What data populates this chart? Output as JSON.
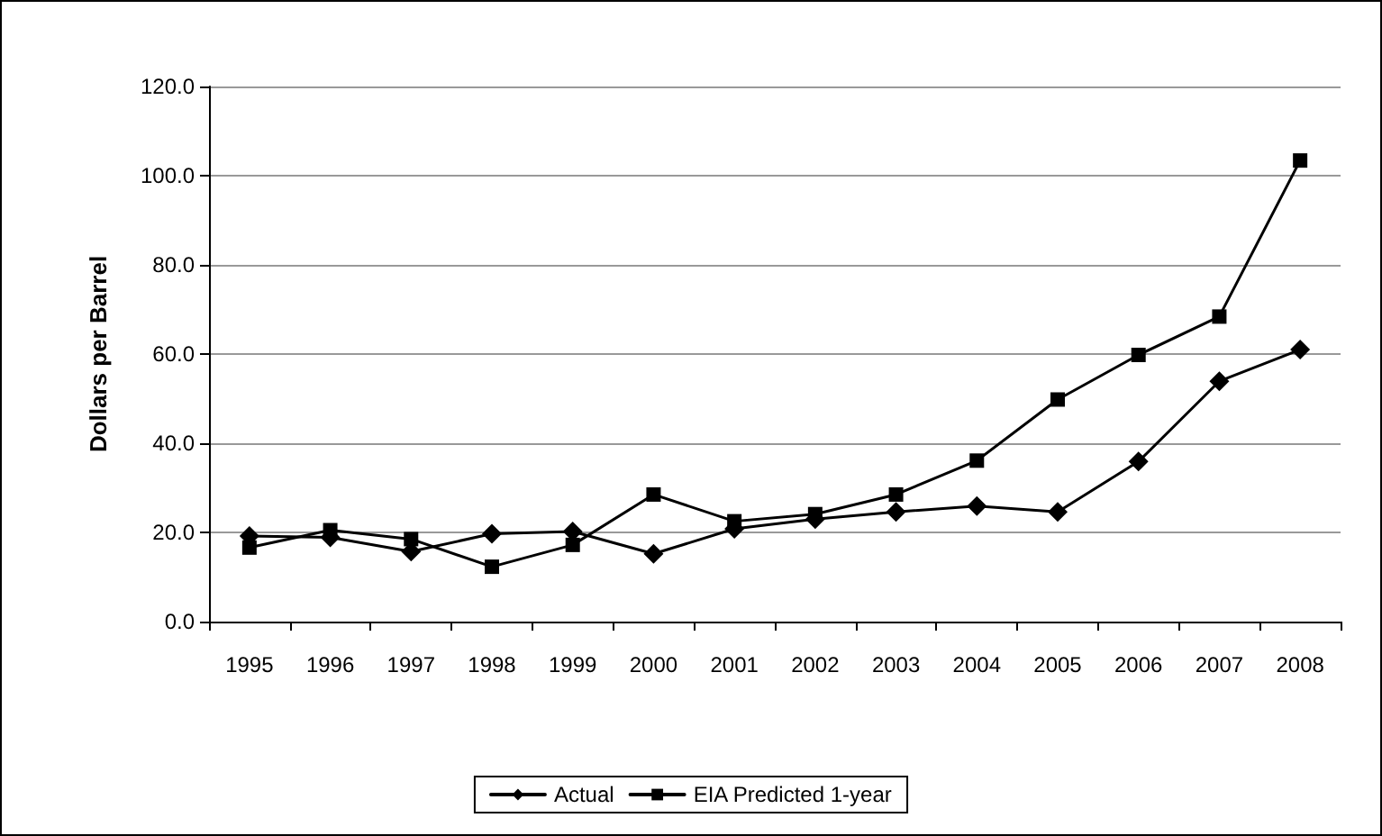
{
  "chart_data": {
    "type": "line",
    "ylabel": "Dollars per Barrel",
    "categories": [
      "1995",
      "1996",
      "1997",
      "1998",
      "1999",
      "2000",
      "2001",
      "2002",
      "2003",
      "2004",
      "2005",
      "2006",
      "2007",
      "2008"
    ],
    "series": [
      {
        "name": "Actual",
        "color": "#000000",
        "marker": "diamond",
        "values": [
          19.2,
          18.9,
          15.7,
          19.7,
          20.2,
          15.2,
          20.8,
          23.0,
          24.6,
          25.9,
          24.6,
          35.9,
          53.9,
          61.0
        ]
      },
      {
        "name": "EIA Predicted 1-year",
        "color": "#000000",
        "marker": "square",
        "values": [
          16.6,
          20.5,
          18.5,
          12.3,
          17.2,
          28.5,
          22.5,
          24.1,
          28.5,
          36.1,
          49.8,
          59.8,
          68.4,
          103.4
        ]
      }
    ],
    "ylim": [
      0,
      120
    ],
    "yticks": [
      {
        "value": 0,
        "label": "0.0"
      },
      {
        "value": 20,
        "label": "20.0"
      },
      {
        "value": 40,
        "label": "40.0"
      },
      {
        "value": 60,
        "label": "60.0"
      },
      {
        "value": 80,
        "label": "80.0"
      },
      {
        "value": 100,
        "label": "100.0"
      },
      {
        "value": 120,
        "label": "120.0"
      }
    ],
    "grid": "y",
    "legend": "bottom",
    "line_style": "solid"
  }
}
